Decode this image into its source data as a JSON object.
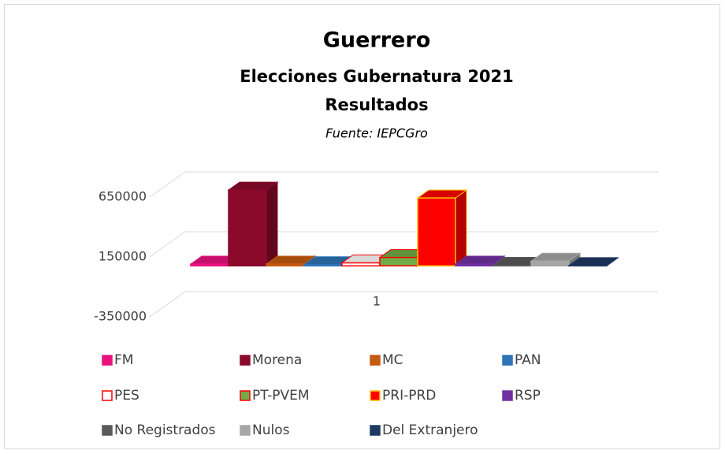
{
  "chart_data": {
    "type": "bar",
    "three_d": true,
    "title": "Guerrero",
    "subtitle": [
      "Elecciones Gubernatura 2021",
      "Resultados"
    ],
    "source": "Fuente: IEPCGro",
    "categories": [
      "1"
    ],
    "ylim": [
      -350000,
      650000
    ],
    "yticks": [
      -350000,
      150000,
      650000
    ],
    "grid": true,
    "legend": "bottom",
    "series": [
      {
        "name": "FM",
        "color": "#e8137f",
        "edgecolor": "#e8137f",
        "values": [
          15000
        ]
      },
      {
        "name": "Morena",
        "color": "#8b0a2c",
        "edgecolor": "#8b0a2c",
        "values": [
          633000
        ]
      },
      {
        "name": "MC",
        "color": "#c55a11",
        "edgecolor": "#c55a11",
        "values": [
          15000
        ]
      },
      {
        "name": "PAN",
        "color": "#2e75b6",
        "edgecolor": "#2e75b6",
        "values": [
          10000
        ]
      },
      {
        "name": "PES",
        "color": "#ffffff",
        "edgecolor": "#ff0000",
        "values": [
          25000
        ]
      },
      {
        "name": "PT-PVEM",
        "color": "#70ad47",
        "edgecolor": "#ff0000",
        "values": [
          70000
        ]
      },
      {
        "name": "PRI-PRD",
        "color": "#ff0000",
        "edgecolor": "#ffc000",
        "values": [
          567000
        ]
      },
      {
        "name": "RSP",
        "color": "#7030a0",
        "edgecolor": "#7030a0",
        "values": [
          15000
        ]
      },
      {
        "name": "No Registrados",
        "color": "#595959",
        "edgecolor": "#595959",
        "values": [
          5000
        ]
      },
      {
        "name": "Nulos",
        "color": "#a6a6a6",
        "edgecolor": "#a6a6a6",
        "values": [
          40000
        ]
      },
      {
        "name": "Del Extranjero",
        "color": "#1f3864",
        "edgecolor": "#1f3864",
        "values": [
          3000
        ]
      }
    ]
  }
}
